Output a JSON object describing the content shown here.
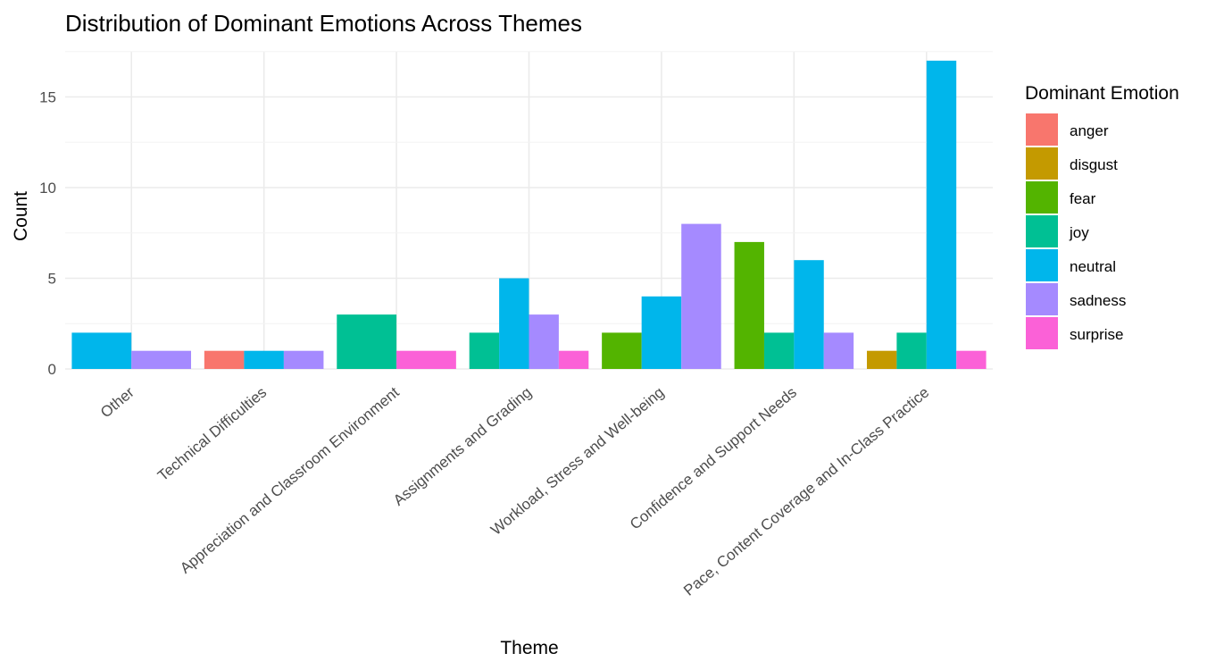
{
  "chart_data": {
    "type": "bar",
    "title": "Distribution of Dominant Emotions Across Themes",
    "xlabel": "Theme",
    "ylabel": "Count",
    "ylim": [
      0,
      17.5
    ],
    "yticks": [
      0,
      5,
      10,
      15
    ],
    "grid": true,
    "legend": {
      "title": "Dominant Emotion",
      "placement": "right"
    },
    "categories": [
      "Other",
      "Technical Difficulties",
      "Appreciation and Classroom Environment",
      "Assignments and Grading",
      "Workload, Stress and Well-being",
      "Confidence and Support Needs",
      "Pace, Content Coverage and In-Class Practice"
    ],
    "series": [
      {
        "name": "anger",
        "color": "#F8766D",
        "values": [
          null,
          1,
          null,
          null,
          null,
          null,
          null
        ]
      },
      {
        "name": "disgust",
        "color": "#C49A00",
        "values": [
          null,
          null,
          null,
          null,
          null,
          null,
          1
        ]
      },
      {
        "name": "fear",
        "color": "#53B400",
        "values": [
          null,
          null,
          null,
          null,
          2,
          7,
          null
        ]
      },
      {
        "name": "joy",
        "color": "#00C094",
        "values": [
          null,
          null,
          3,
          2,
          null,
          2,
          2
        ]
      },
      {
        "name": "neutral",
        "color": "#00B6EB",
        "values": [
          2,
          1,
          null,
          5,
          4,
          6,
          17
        ]
      },
      {
        "name": "sadness",
        "color": "#A58AFF",
        "values": [
          1,
          1,
          null,
          3,
          8,
          2,
          null
        ]
      },
      {
        "name": "surprise",
        "color": "#FB61D7",
        "values": [
          null,
          null,
          1,
          1,
          null,
          null,
          1
        ]
      }
    ]
  }
}
